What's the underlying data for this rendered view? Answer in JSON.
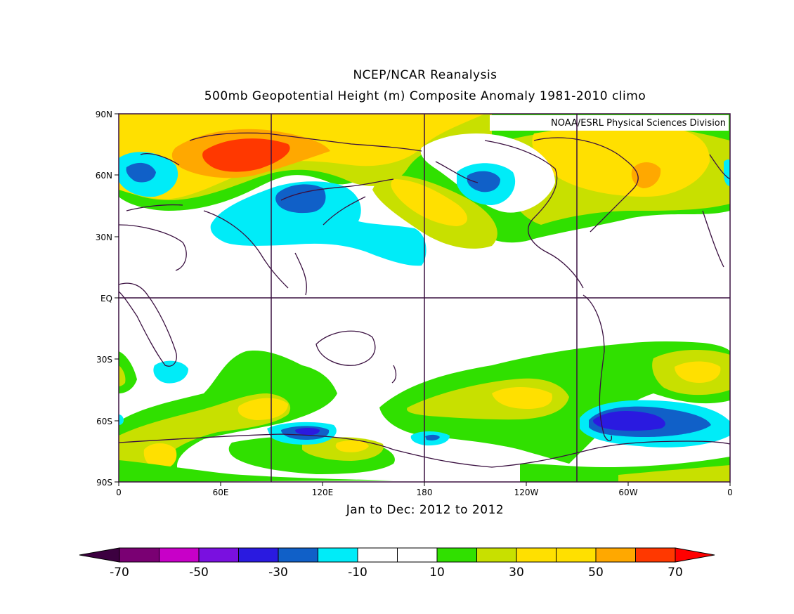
{
  "title_line1": "NCEP/NCAR Reanalysis",
  "title_line2": "500mb Geopotential Height (m) Composite Anomaly 1981-2010 climo",
  "credit": "NOAA/ESRL Physical Sciences Division",
  "subtitle": "Jan to Dec: 2012 to 2012",
  "lat_ticks": [
    "90N",
    "60N",
    "30N",
    "EQ",
    "30S",
    "60S",
    "90S"
  ],
  "lon_ticks": [
    "0",
    "60E",
    "120E",
    "180",
    "120W",
    "60W",
    "0"
  ],
  "colorbar": {
    "labels": [
      "-70",
      "-50",
      "-30",
      "-10",
      "10",
      "30",
      "50",
      "70"
    ],
    "colors": [
      "#7a0073",
      "#c800c8",
      "#7a10e0",
      "#2a1ae0",
      "#1060c8",
      "#00ecf8",
      "#ffffff",
      "#ffffff",
      "#30e000",
      "#c8e000",
      "#ffe000",
      "#ffe000",
      "#ffa800",
      "#ff3800"
    ],
    "low_arrow_color": "#3c0040",
    "high_arrow_color": "#ff0000"
  },
  "map_colors": {
    "land_outline": "#3a1040",
    "grid": "#3a1040",
    "anom_pos_weak": "#30e000",
    "anom_pos_mid": "#c8e000",
    "anom_pos": "#ffe000",
    "anom_pos_strong": "#ffa800",
    "anom_pos_max": "#ff3800",
    "anom_neg_weak": "#00ecf8",
    "anom_neg_mid": "#1060c8",
    "anom_neg": "#2a1ae0"
  }
}
